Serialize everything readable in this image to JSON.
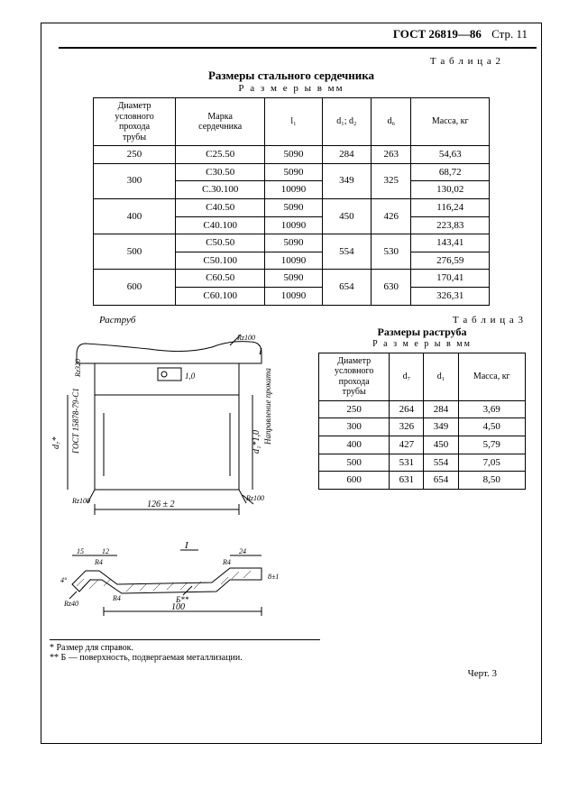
{
  "header": {
    "standard": "ГОСТ 26819—86",
    "page_label": "Стр. 11"
  },
  "table2": {
    "label": "Т а б л и ц а 2",
    "title": "Размеры стального сердечника",
    "subtitle": "Р а з м е р ы  в  мм",
    "columns": {
      "c1": "Диаметр\nусловного\nпрохода\nтрубы",
      "c2": "Марка\nсердечника",
      "c3": "l₁",
      "c4": "d₁; d₂",
      "c5": "d₆",
      "c6": "Масса, кг"
    },
    "rows": [
      {
        "d": "250",
        "marks": [
          "С25.50"
        ],
        "l": [
          "5090"
        ],
        "d12": "284",
        "d6": "263",
        "mass": [
          "54,63"
        ]
      },
      {
        "d": "300",
        "marks": [
          "С30.50",
          "С.30.100"
        ],
        "l": [
          "5090",
          "10090"
        ],
        "d12": "349",
        "d6": "325",
        "mass": [
          "68,72",
          "130,02"
        ]
      },
      {
        "d": "400",
        "marks": [
          "С40.50",
          "С40.100"
        ],
        "l": [
          "5090",
          "10090"
        ],
        "d12": "450",
        "d6": "426",
        "mass": [
          "116,24",
          "223,83"
        ]
      },
      {
        "d": "500",
        "marks": [
          "С50.50",
          "С50.100"
        ],
        "l": [
          "5090",
          "10090"
        ],
        "d12": "554",
        "d6": "530",
        "mass": [
          "143,41",
          "276,59"
        ]
      },
      {
        "d": "600",
        "marks": [
          "С60.50",
          "С60.100"
        ],
        "l": [
          "5090",
          "10090"
        ],
        "d12": "654",
        "d6": "630",
        "mass": [
          "170,41",
          "326,31"
        ]
      }
    ]
  },
  "diagram": {
    "label_rastrub": "Раструб",
    "labels": {
      "dim_126": "126 ± 2",
      "dim_100": "100",
      "dim_24": "24",
      "dim_15": "15",
      "dim_12": "12",
      "R4": "R4",
      "R2_100": "Rz100",
      "Rz320": "Rz320",
      "Rz40": "Rz40",
      "d7": "d₇*",
      "d1_10": "d₁*1,0",
      "gost_ref": "ГОСТ 15878-79-С1",
      "tol_10": "1,0",
      "marker_I": "I",
      "marker_B": "Б**",
      "angle4": "4°",
      "dim_8": "8±1",
      "napravlenie": "Направление проката"
    }
  },
  "table3": {
    "label": "Т а б л и ц а 3",
    "title": "Размеры раструба",
    "subtitle": "Р а з м е р ы  в  мм",
    "columns": {
      "c1": "Диаметр\nусловного\nпрохода\nтрубы",
      "c2": "d₇",
      "c3": "d₁",
      "c4": "Масса, кг"
    },
    "rows": [
      [
        "250",
        "264",
        "284",
        "3,69"
      ],
      [
        "300",
        "326",
        "349",
        "4,50"
      ],
      [
        "400",
        "427",
        "450",
        "5,79"
      ],
      [
        "500",
        "531",
        "554",
        "7,05"
      ],
      [
        "600",
        "631",
        "654",
        "8,50"
      ]
    ]
  },
  "footnotes": {
    "n1": "* Размер для справок.",
    "n2": "** Б — поверхность, подвергаемая металлизации."
  },
  "figure_label": "Черт. 3"
}
